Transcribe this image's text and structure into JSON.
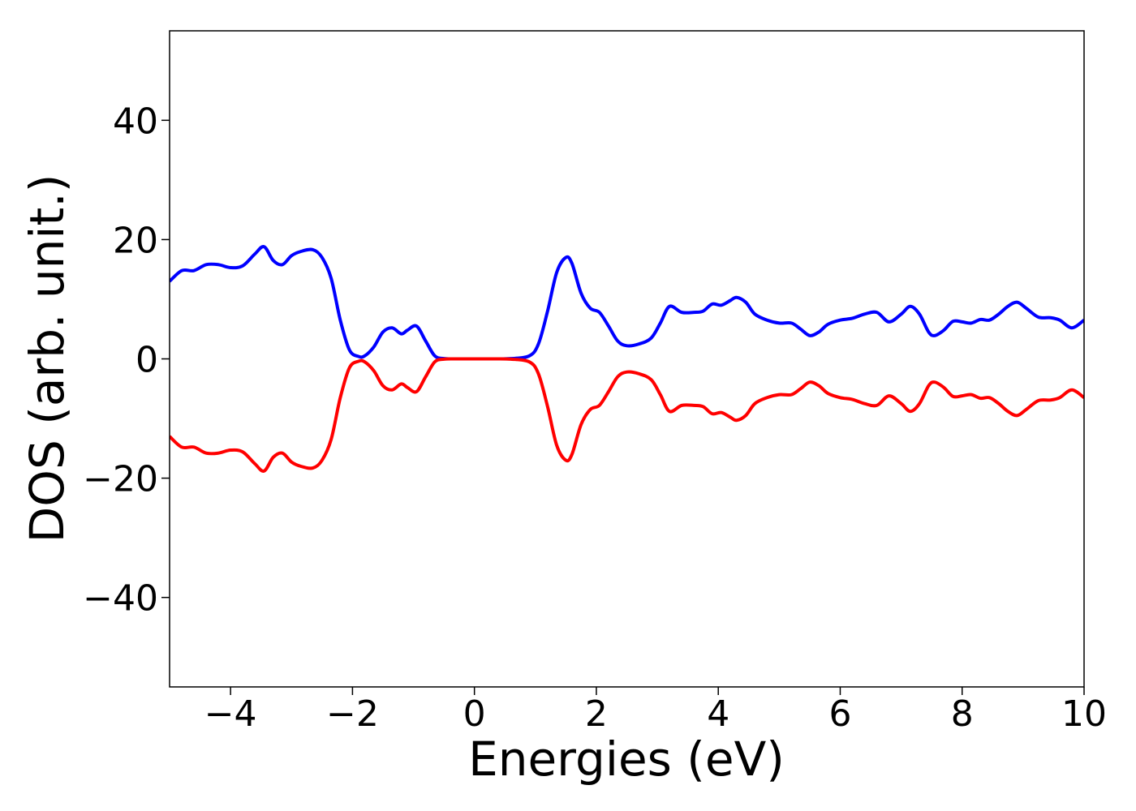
{
  "chart_data": {
    "type": "line",
    "title": "",
    "xlabel": "Energies (eV)",
    "ylabel": "DOS (arb. unit.)",
    "xlim": [
      -5,
      10
    ],
    "ylim": [
      -55,
      55
    ],
    "xticks": [
      -4,
      -2,
      0,
      2,
      4,
      6,
      8,
      10
    ],
    "yticks": [
      -40,
      -20,
      0,
      20,
      40
    ],
    "xtick_labels": [
      "−4",
      "−2",
      "0",
      "2",
      "4",
      "6",
      "8",
      "10"
    ],
    "ytick_labels": [
      "−40",
      "−20",
      "0",
      "20",
      "40"
    ],
    "grid": false,
    "legend": "none",
    "x": [
      -5.0,
      -4.8,
      -4.6,
      -4.4,
      -4.2,
      -4.0,
      -3.8,
      -3.6,
      -3.45,
      -3.3,
      -3.15,
      -3.0,
      -2.85,
      -2.65,
      -2.5,
      -2.35,
      -2.2,
      -2.05,
      -1.9,
      -1.8,
      -1.65,
      -1.5,
      -1.35,
      -1.2,
      -1.1,
      -0.95,
      -0.8,
      -0.65,
      -0.5,
      -0.3,
      0.0,
      0.3,
      0.6,
      0.9,
      1.05,
      1.2,
      1.35,
      1.5,
      1.6,
      1.75,
      1.9,
      2.05,
      2.2,
      2.35,
      2.5,
      2.7,
      2.9,
      3.05,
      3.2,
      3.4,
      3.6,
      3.75,
      3.9,
      4.05,
      4.2,
      4.3,
      4.45,
      4.6,
      4.8,
      5.0,
      5.2,
      5.35,
      5.5,
      5.65,
      5.8,
      6.0,
      6.2,
      6.4,
      6.6,
      6.8,
      7.0,
      7.15,
      7.3,
      7.45,
      7.55,
      7.7,
      7.85,
      8.0,
      8.15,
      8.3,
      8.45,
      8.6,
      8.75,
      8.9,
      9.05,
      9.25,
      9.45,
      9.6,
      9.8,
      10.0
    ],
    "series": [
      {
        "color": "#0000ff",
        "values": [
          13.0,
          14.8,
          14.8,
          15.8,
          15.8,
          15.3,
          15.6,
          17.6,
          18.8,
          16.5,
          15.8,
          17.3,
          18.0,
          18.3,
          17.0,
          13.5,
          6.5,
          1.5,
          0.4,
          0.5,
          2.0,
          4.5,
          5.2,
          4.2,
          4.8,
          5.5,
          3.0,
          0.5,
          0.05,
          0.0,
          0.0,
          0.0,
          0.05,
          0.5,
          2.5,
          8.0,
          14.5,
          17.0,
          16.0,
          11.0,
          8.5,
          7.8,
          5.5,
          3.0,
          2.2,
          2.5,
          3.5,
          6.0,
          8.8,
          7.8,
          7.8,
          8.0,
          9.2,
          9.0,
          9.8,
          10.3,
          9.5,
          7.5,
          6.5,
          6.0,
          6.0,
          5.0,
          3.9,
          4.5,
          5.8,
          6.5,
          6.8,
          7.5,
          7.8,
          6.2,
          7.5,
          8.8,
          7.5,
          4.5,
          3.9,
          4.8,
          6.3,
          6.2,
          6.0,
          6.6,
          6.5,
          7.5,
          8.8,
          9.5,
          8.5,
          7.0,
          6.9,
          6.5,
          5.2,
          6.5
        ]
      },
      {
        "color": "#ff0000",
        "values": [
          -13.0,
          -14.8,
          -14.8,
          -15.8,
          -15.8,
          -15.3,
          -15.6,
          -17.6,
          -18.8,
          -16.5,
          -15.8,
          -17.3,
          -18.0,
          -18.3,
          -17.0,
          -13.5,
          -6.5,
          -1.5,
          -0.4,
          -0.5,
          -2.0,
          -4.5,
          -5.2,
          -4.2,
          -4.8,
          -5.5,
          -3.0,
          -0.5,
          -0.05,
          0.0,
          0.0,
          0.0,
          -0.05,
          -0.5,
          -2.5,
          -8.0,
          -14.5,
          -17.0,
          -16.0,
          -11.0,
          -8.5,
          -7.8,
          -5.5,
          -3.0,
          -2.2,
          -2.5,
          -3.5,
          -6.0,
          -8.8,
          -7.8,
          -7.8,
          -8.0,
          -9.2,
          -9.0,
          -9.8,
          -10.3,
          -9.5,
          -7.5,
          -6.5,
          -6.0,
          -6.0,
          -5.0,
          -3.9,
          -4.5,
          -5.8,
          -6.5,
          -6.8,
          -7.5,
          -7.8,
          -6.2,
          -7.5,
          -8.8,
          -7.5,
          -4.5,
          -3.9,
          -4.8,
          -6.3,
          -6.2,
          -6.0,
          -6.6,
          -6.5,
          -7.5,
          -8.8,
          -9.5,
          -8.5,
          -7.0,
          -6.9,
          -6.5,
          -5.2,
          -6.5
        ]
      }
    ]
  }
}
